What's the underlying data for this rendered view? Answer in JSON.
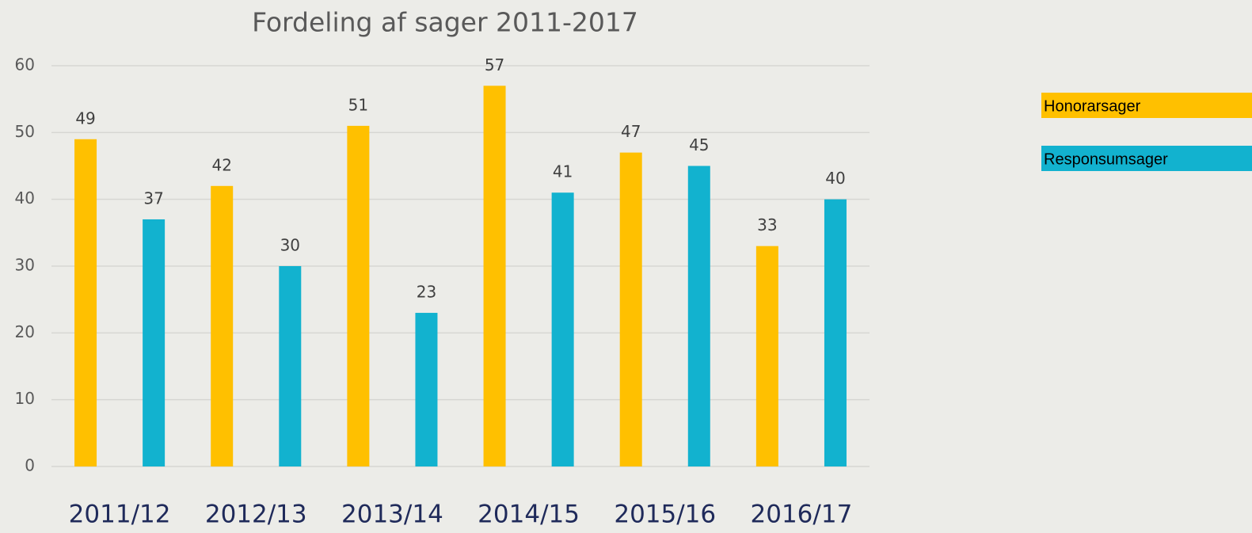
{
  "chart_data": {
    "type": "bar",
    "title": "Fordeling af sager 2011-2017",
    "categories": [
      "2011/12",
      "2012/13",
      "2013/14",
      "2014/15",
      "2015/16",
      "2016/17"
    ],
    "series": [
      {
        "name": "Honorarsager",
        "color": "#ffc000",
        "values": [
          49,
          42,
          51,
          57,
          47,
          33
        ]
      },
      {
        "name": "Responsumsager",
        "color": "#12b2cf",
        "values": [
          37,
          30,
          23,
          41,
          45,
          40
        ]
      }
    ],
    "ylim": [
      0,
      60
    ],
    "yticks": [
      0,
      10,
      20,
      30,
      40,
      50,
      60
    ],
    "grid": true,
    "legend": "right"
  }
}
